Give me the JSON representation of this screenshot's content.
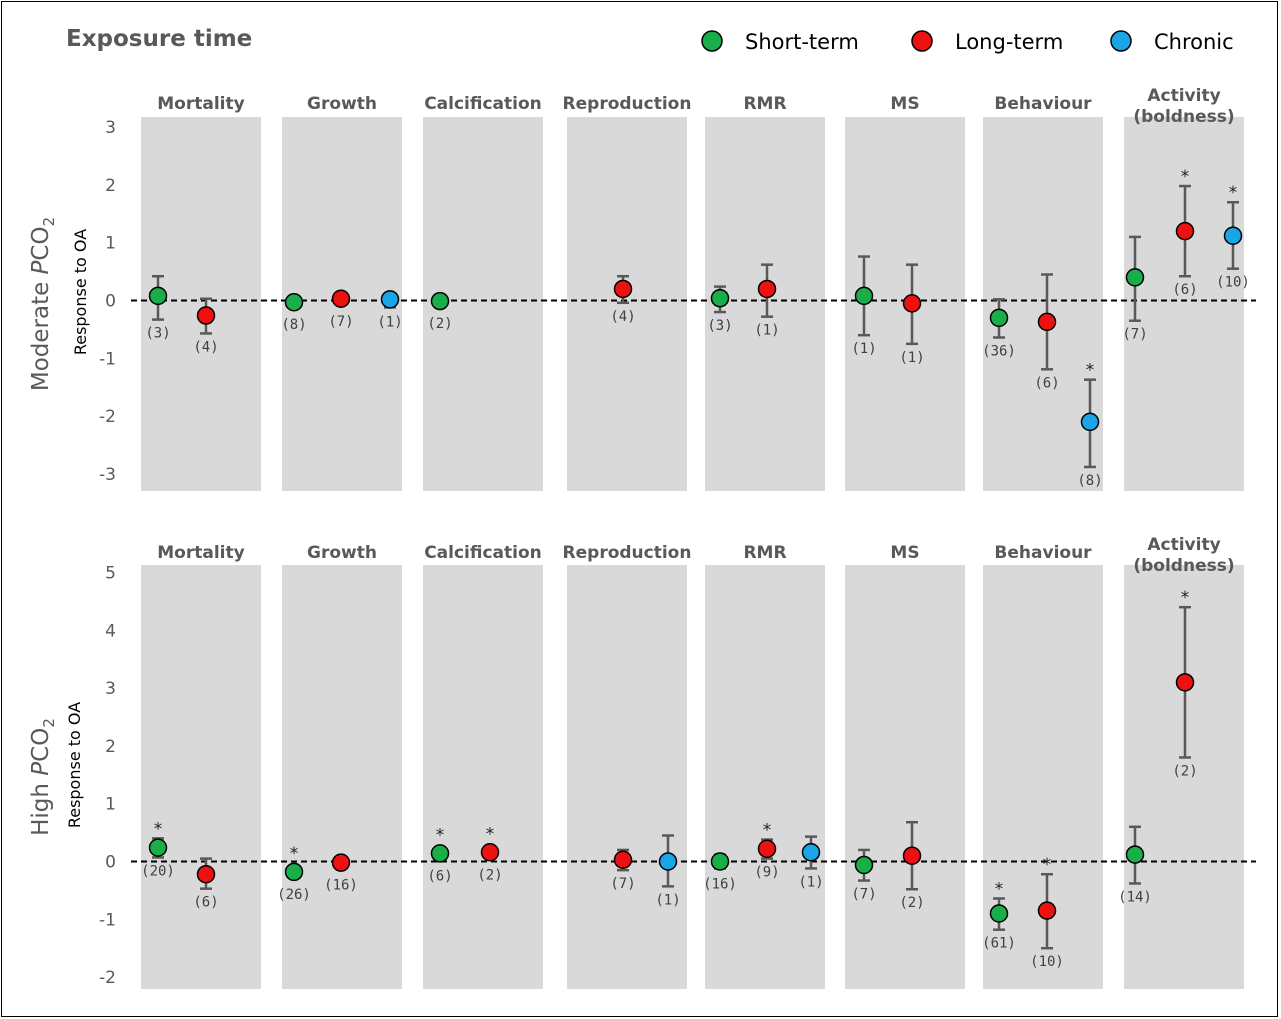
{
  "title": "Exposure time",
  "legend": [
    {
      "name": "Short-term",
      "color": "#1aae4a"
    },
    {
      "name": "Long-term",
      "color": "#ee1111"
    },
    {
      "name": "Chronic",
      "color": "#1aa6e6"
    }
  ],
  "chart_data": [
    {
      "type": "scatter",
      "panel": "Moderate PCO2",
      "panel_label_prefix": "Moderate ",
      "panel_label_italic": "P",
      "panel_label_main": "CO",
      "panel_label_sub": "2",
      "ylabel": "Response to OA",
      "ylim": [
        -3.3,
        3.3
      ],
      "yticks": [
        -3,
        -2,
        -1,
        0,
        1,
        2,
        3
      ],
      "categories": [
        "Mortality",
        "Growth",
        "Calcification",
        "Reproduction",
        "RMR",
        "MS",
        "Behaviour",
        "Activity (boldness)"
      ],
      "category_labels": [
        [
          "Mortality"
        ],
        [
          "Growth"
        ],
        [
          "Calcification"
        ],
        [
          "Reproduction"
        ],
        [
          "RMR"
        ],
        [
          "MS"
        ],
        [
          "Behaviour"
        ],
        [
          "Activity",
          "(boldness)"
        ]
      ],
      "points": [
        {
          "category": "Mortality",
          "series": "Short-term",
          "y": 0.08,
          "lo": -0.33,
          "hi": 0.42,
          "n": "(3)",
          "sig": false
        },
        {
          "category": "Mortality",
          "series": "Long-term",
          "y": -0.26,
          "lo": -0.57,
          "hi": 0.03,
          "n": "(4)",
          "sig": false
        },
        {
          "category": "Growth",
          "series": "Short-term",
          "y": -0.03,
          "n": "(8)",
          "sig": false
        },
        {
          "category": "Growth",
          "series": "Long-term",
          "y": 0.03,
          "n": "(7)",
          "sig": false
        },
        {
          "category": "Growth",
          "series": "Chronic",
          "y": 0.02,
          "lo": -0.12,
          "hi": 0.1,
          "n": "(1)",
          "sig": false
        },
        {
          "category": "Calcification",
          "series": "Short-term",
          "y": -0.01,
          "n": "(2)",
          "sig": false
        },
        {
          "category": "Reproduction",
          "series": "Long-term",
          "y": 0.2,
          "lo": -0.04,
          "hi": 0.42,
          "n": "(4)",
          "sig": false
        },
        {
          "category": "RMR",
          "series": "Short-term",
          "y": 0.04,
          "lo": -0.2,
          "hi": 0.24,
          "n": "(3)",
          "sig": false
        },
        {
          "category": "RMR",
          "series": "Long-term",
          "y": 0.2,
          "lo": -0.28,
          "hi": 0.62,
          "n": "(1)",
          "sig": false
        },
        {
          "category": "MS",
          "series": "Short-term",
          "y": 0.08,
          "lo": -0.6,
          "hi": 0.76,
          "n": "(1)",
          "sig": false
        },
        {
          "category": "MS",
          "series": "Long-term",
          "y": -0.05,
          "lo": -0.75,
          "hi": 0.62,
          "n": "(1)",
          "sig": false
        },
        {
          "category": "Behaviour",
          "series": "Short-term",
          "y": -0.3,
          "lo": -0.64,
          "hi": 0.02,
          "n": "(36)",
          "sig": false
        },
        {
          "category": "Behaviour",
          "series": "Long-term",
          "y": -0.37,
          "lo": -1.19,
          "hi": 0.45,
          "n": "(6)",
          "sig": false
        },
        {
          "category": "Behaviour",
          "series": "Chronic",
          "y": -2.1,
          "lo": -2.88,
          "hi": -1.37,
          "n": "(8)",
          "sig": true
        },
        {
          "category": "Activity (boldness)",
          "series": "Short-term",
          "y": 0.4,
          "lo": -0.35,
          "hi": 1.1,
          "n": "(7)",
          "sig": false
        },
        {
          "category": "Activity (boldness)",
          "series": "Long-term",
          "y": 1.2,
          "lo": 0.42,
          "hi": 1.98,
          "n": "(6)",
          "sig": true
        },
        {
          "category": "Activity (boldness)",
          "series": "Chronic",
          "y": 1.12,
          "lo": 0.55,
          "hi": 1.7,
          "n": "(10)",
          "sig": true
        }
      ]
    },
    {
      "type": "scatter",
      "panel": "High PCO2",
      "panel_label_prefix": "High ",
      "panel_label_italic": "P",
      "panel_label_main": "CO",
      "panel_label_sub": "2",
      "ylabel": "Response to OA",
      "ylim": [
        -2.3,
        5.2
      ],
      "yticks": [
        -2,
        -1,
        0,
        1,
        2,
        3,
        4,
        5
      ],
      "categories": [
        "Mortality",
        "Growth",
        "Calcification",
        "Reproduction",
        "RMR",
        "MS",
        "Behaviour",
        "Activity (boldness)"
      ],
      "category_labels": [
        [
          "Mortality"
        ],
        [
          "Growth"
        ],
        [
          "Calcification"
        ],
        [
          "Reproduction"
        ],
        [
          "RMR"
        ],
        [
          "MS"
        ],
        [
          "Behaviour"
        ],
        [
          "Activity",
          "(boldness)"
        ]
      ],
      "points": [
        {
          "category": "Mortality",
          "series": "Short-term",
          "y": 0.24,
          "lo": 0.07,
          "hi": 0.4,
          "n": "(20)",
          "sig": true
        },
        {
          "category": "Mortality",
          "series": "Long-term",
          "y": -0.22,
          "lo": -0.47,
          "hi": 0.05,
          "n": "(6)",
          "sig": false
        },
        {
          "category": "Growth",
          "series": "Short-term",
          "y": -0.18,
          "n": "(26)",
          "sig": true
        },
        {
          "category": "Growth",
          "series": "Long-term",
          "y": -0.02,
          "n": "(16)",
          "sig": false
        },
        {
          "category": "Calcification",
          "series": "Short-term",
          "y": 0.14,
          "n": "(6)",
          "sig": true
        },
        {
          "category": "Calcification",
          "series": "Long-term",
          "y": 0.16,
          "n": "(2)",
          "sig": true
        },
        {
          "category": "Reproduction",
          "series": "Long-term",
          "y": 0.03,
          "lo": -0.15,
          "hi": 0.2,
          "n": "(7)",
          "sig": false
        },
        {
          "category": "Reproduction",
          "series": "Chronic",
          "y": 0.0,
          "lo": -0.43,
          "hi": 0.45,
          "n": "(1)",
          "sig": false
        },
        {
          "category": "RMR",
          "series": "Short-term",
          "y": 0.0,
          "lo": -0.12,
          "hi": 0.12,
          "n": "(16)",
          "sig": false
        },
        {
          "category": "RMR",
          "series": "Long-term",
          "y": 0.22,
          "lo": 0.05,
          "hi": 0.38,
          "n": "(9)",
          "sig": true
        },
        {
          "category": "RMR",
          "series": "Chronic",
          "y": 0.16,
          "lo": -0.12,
          "hi": 0.43,
          "n": "(1)",
          "sig": false
        },
        {
          "category": "MS",
          "series": "Short-term",
          "y": -0.06,
          "lo": -0.33,
          "hi": 0.2,
          "n": "(7)",
          "sig": false
        },
        {
          "category": "MS",
          "series": "Long-term",
          "y": 0.1,
          "lo": -0.48,
          "hi": 0.68,
          "n": "(2)",
          "sig": false
        },
        {
          "category": "Behaviour",
          "series": "Short-term",
          "y": -0.9,
          "lo": -1.18,
          "hi": -0.64,
          "n": "(61)",
          "sig": true
        },
        {
          "category": "Behaviour",
          "series": "Long-term",
          "y": -0.85,
          "lo": -1.5,
          "hi": -0.22,
          "n": "(10)",
          "sig": true
        },
        {
          "category": "Activity (boldness)",
          "series": "Short-term",
          "y": 0.12,
          "lo": -0.38,
          "hi": 0.6,
          "n": "(14)",
          "sig": false
        },
        {
          "category": "Activity (boldness)",
          "series": "Long-term",
          "y": 3.1,
          "lo": 1.8,
          "hi": 4.4,
          "n": "(2)",
          "sig": true
        }
      ]
    }
  ]
}
